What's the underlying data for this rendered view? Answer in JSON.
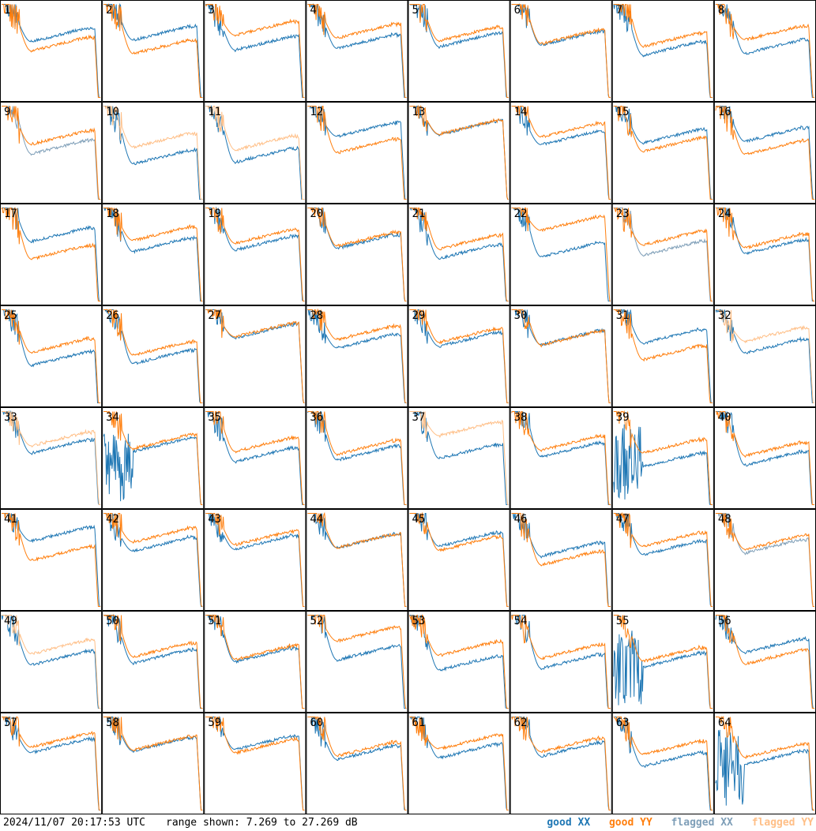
{
  "chart_data": {
    "type": "line",
    "layout": "small-multiples grid 8x8",
    "panels": [
      "1",
      "2",
      "3",
      "4",
      "5",
      "6",
      "7",
      "8",
      "9",
      "10",
      "11",
      "12",
      "13",
      "14",
      "15",
      "16",
      "17",
      "18",
      "19",
      "20",
      "21",
      "22",
      "23",
      "24",
      "25",
      "26",
      "27",
      "28",
      "29",
      "30",
      "31",
      "32",
      "33",
      "34",
      "35",
      "36",
      "37",
      "38",
      "39",
      "40",
      "41",
      "42",
      "43",
      "44",
      "45",
      "46",
      "47",
      "48",
      "49",
      "50",
      "51",
      "52",
      "53",
      "54",
      "55",
      "56",
      "57",
      "58",
      "59",
      "60",
      "61",
      "62",
      "63",
      "64"
    ],
    "ylim": [
      7.269,
      27.269
    ],
    "series": [
      {
        "name": "good XX",
        "color": "#1f77b4"
      },
      {
        "name": "good YY",
        "color": "#ff7f0e"
      },
      {
        "name": "flagged XX",
        "color": "#7f9fb8"
      },
      {
        "name": "flagged YY",
        "color": "#ffbf87"
      }
    ],
    "flagged_panels": {
      "xx": [
        "9",
        "23",
        "48"
      ],
      "yy": [
        "10",
        "11",
        "32",
        "33",
        "37",
        "49"
      ],
      "both_partial": [
        "34",
        "39",
        "55",
        "64"
      ]
    }
  },
  "footer": {
    "timestamp": "2024/11/07 20:17:53 UTC",
    "range_text": "range shown: 7.269 to 27.269 dB",
    "legend": [
      "good XX",
      "good YY",
      "flagged XX",
      "flagged YY"
    ]
  }
}
